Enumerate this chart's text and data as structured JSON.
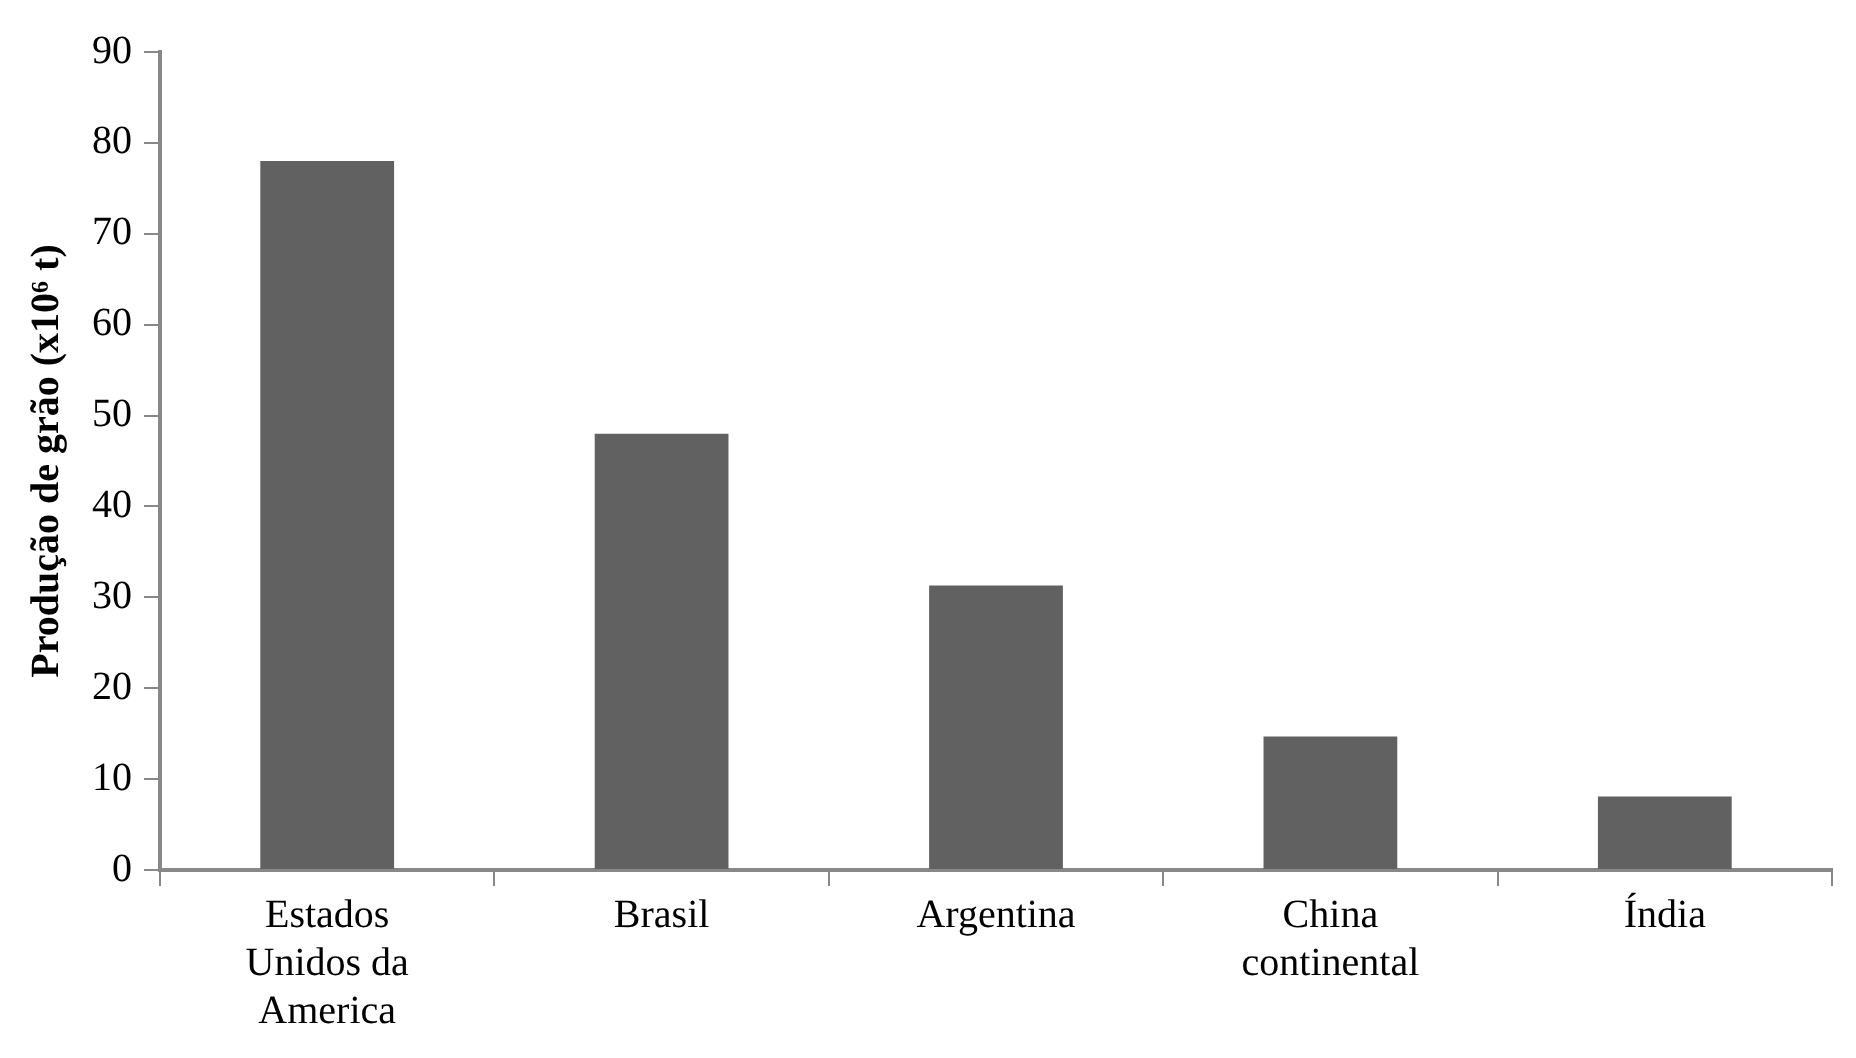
{
  "chart_data": {
    "type": "bar",
    "ylabel": "Produção de grão (x10⁶ t)",
    "categories": [
      "Estados Unidos da America",
      "Brasil",
      "Argentina",
      "China continental",
      "Índia"
    ],
    "values": [
      78,
      48,
      31.3,
      14.7,
      8.1
    ],
    "color": "#616161",
    "ylim": [
      0,
      90
    ],
    "yticks": [
      0,
      10,
      20,
      30,
      40,
      50,
      60,
      70,
      80,
      90
    ],
    "grid": false
  }
}
